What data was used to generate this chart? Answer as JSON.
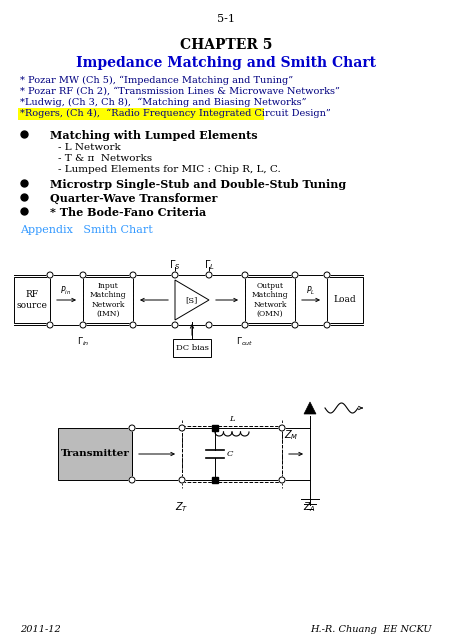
{
  "page_number": "5-1",
  "chapter": "CHAPTER 5",
  "title": "Impedance Matching and Smith Chart",
  "title_color": "#0000CC",
  "references": [
    "* Pozar MW (Ch 5), “Impedance Matching and Tuning”",
    "* Pozar RF (Ch 2), “Transmission Lines & Microwave Networks”",
    "*Ludwig, (Ch 3, Ch 8),  “Matching and Biasing Networks”",
    "*Rogers, (Ch 4),  “Radio Frequency Integrated Circuit Design”"
  ],
  "ref_color": "#000080",
  "highlight_color": "#FFFF00",
  "bullets": [
    "Matching with Lumped Elements",
    "Microstrp Single-Stub and Double-Stub Tuning",
    "Quarter-Wave Transformer",
    "* The Bode-Fano Criteria"
  ],
  "sub_bullets": [
    "- L Network",
    "- T & π  Networks",
    "- Lumped Elements for MIC : Chip R, L, C."
  ],
  "appendix_text": "Appendix   Smith Chart",
  "appendix_color": "#3399FF",
  "footer_left": "2011-12",
  "footer_right": "H.-R. Chuang  EE NCKU",
  "bg_color": "#FFFFFF"
}
